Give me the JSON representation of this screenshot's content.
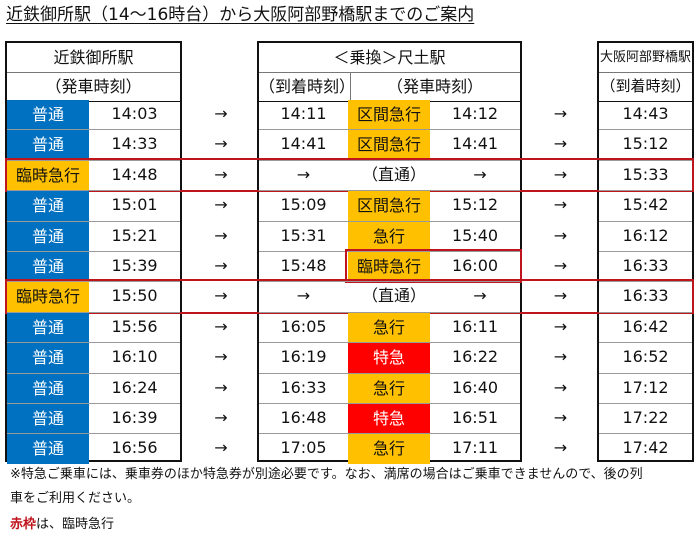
{
  "page_title": "近鉄御所駅（14〜16時台）から大阪阿部野橋駅までのご案内",
  "columns": {
    "origin": {
      "station": "近鉄御所駅",
      "time_label": "（発車時刻）"
    },
    "transfer": {
      "station": "＜乗換＞尺土駅",
      "arrival_label": "（到着時刻）",
      "departure_label": "（発車時刻）"
    },
    "destination": {
      "station": "大阪阿部野橋駅",
      "time_label": "（到着時刻）"
    }
  },
  "arrow": "→",
  "direct_label": "（直通）",
  "service_colors": {
    "普通": "#0070c0",
    "区間急行": "#ffc000",
    "急行": "#ffc000",
    "特急": "#ff0000",
    "臨時急行": "#ffc000"
  },
  "rows": [
    {
      "svc1": "普通",
      "dep1": "14:03",
      "arr2": "14:11",
      "svc2": "区間急行",
      "dep2": "14:12",
      "arr3": "14:43"
    },
    {
      "svc1": "普通",
      "dep1": "14:33",
      "arr2": "14:41",
      "svc2": "区間急行",
      "dep2": "14:41",
      "arr3": "15:12"
    },
    {
      "svc1": "臨時急行",
      "dep1": "14:48",
      "direct": true,
      "arr3": "15:33",
      "highlight": "full"
    },
    {
      "svc1": "普通",
      "dep1": "15:01",
      "arr2": "15:09",
      "svc2": "区間急行",
      "dep2": "15:12",
      "arr3": "15:42"
    },
    {
      "svc1": "普通",
      "dep1": "15:21",
      "arr2": "15:31",
      "svc2": "急行",
      "dep2": "15:40",
      "arr3": "16:12"
    },
    {
      "svc1": "普通",
      "dep1": "15:39",
      "arr2": "15:48",
      "svc2": "臨時急行",
      "dep2": "16:00",
      "arr3": "16:33",
      "highlight": "partial"
    },
    {
      "svc1": "臨時急行",
      "dep1": "15:50",
      "direct": true,
      "arr3": "16:33",
      "highlight": "full"
    },
    {
      "svc1": "普通",
      "dep1": "15:56",
      "arr2": "16:05",
      "svc2": "急行",
      "dep2": "16:11",
      "arr3": "16:42"
    },
    {
      "svc1": "普通",
      "dep1": "16:10",
      "arr2": "16:19",
      "svc2": "特急",
      "dep2": "16:22",
      "arr3": "16:52"
    },
    {
      "svc1": "普通",
      "dep1": "16:24",
      "arr2": "16:33",
      "svc2": "急行",
      "dep2": "16:40",
      "arr3": "17:12"
    },
    {
      "svc1": "普通",
      "dep1": "16:39",
      "arr2": "16:48",
      "svc2": "特急",
      "dep2": "16:51",
      "arr3": "17:22"
    },
    {
      "svc1": "普通",
      "dep1": "16:56",
      "arr2": "17:05",
      "svc2": "急行",
      "dep2": "17:11",
      "arr3": "17:42"
    }
  ],
  "notes": {
    "line1": "※特急ご乗車には、乗車券のほか特急券が別途必要です。なお、満席の場合はご乗車できませんので、後の列",
    "line2": "車をご利用ください。",
    "legend_emph": "赤枠",
    "legend_rest": "は、臨時急行"
  }
}
